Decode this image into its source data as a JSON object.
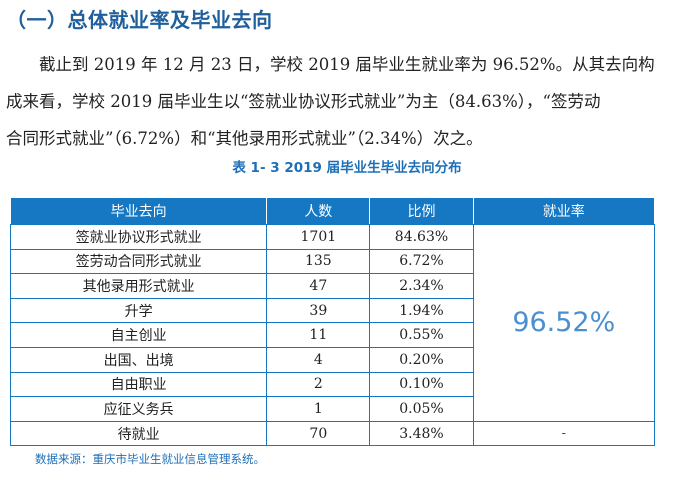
{
  "heading": "（一）总体就业率及毕业去向",
  "paragraph": {
    "line1": "截止到 2019 年 12 月 23 日，学校 2019 届毕业生就业率为 96.52%。从其去向构",
    "line2": "成来看，学校 2019 届毕业生以“签就业协议形式就业”为主（84.63%），“签劳动",
    "line3": "合同形式就业”（6.72%）和“其他录用形式就业”（2.34%）次之。"
  },
  "table_title": "表 1- 3    2019 届毕业生毕业去向分布",
  "table": {
    "headers": [
      "毕业去向",
      "人数",
      "比例",
      "就业率"
    ],
    "rows": [
      {
        "destination": "签就业协议形式就业",
        "count": "1701",
        "ratio": "84.63%"
      },
      {
        "destination": "签劳动合同形式就业",
        "count": "135",
        "ratio": "6.72%"
      },
      {
        "destination": "其他录用形式就业",
        "count": "47",
        "ratio": "2.34%"
      },
      {
        "destination": "升学",
        "count": "39",
        "ratio": "1.94%"
      },
      {
        "destination": "自主创业",
        "count": "11",
        "ratio": "0.55%"
      },
      {
        "destination": "出国、出境",
        "count": "4",
        "ratio": "0.20%"
      },
      {
        "destination": "自由职业",
        "count": "2",
        "ratio": "0.10%"
      },
      {
        "destination": "应征义务兵",
        "count": "1",
        "ratio": "0.05%"
      },
      {
        "destination": "待就业",
        "count": "70",
        "ratio": "3.48%"
      }
    ],
    "employment_rate": "96.52%",
    "unemployed_rate": "-"
  },
  "source_note": "数据来源：重庆市毕业生就业信息管理系统。",
  "colors": {
    "accent": "#1677c3",
    "heading": "#1f5f9c",
    "big_rate": "#4a8fd0"
  }
}
